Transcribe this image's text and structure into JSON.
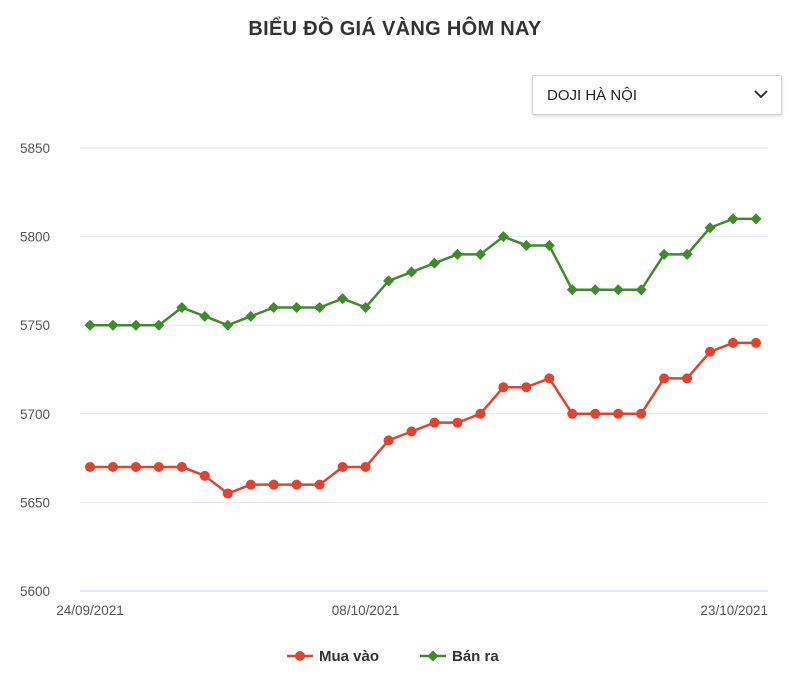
{
  "title": "BIỂU ĐỒ GIÁ VÀNG HÔM NAY",
  "selector": {
    "value": "DOJI HÀ NỘI"
  },
  "colors": {
    "buy": "#e0432f",
    "sell": "#3f8a2c",
    "grid": "#e3e6ee",
    "axis": "#c9d1ea"
  },
  "chart_data": {
    "type": "line",
    "title": "BIỂU ĐỒ GIÁ VÀNG HÔM NAY",
    "x_tick_labels": [
      "24/09/2021",
      "08/10/2021",
      "23/10/2021"
    ],
    "x_tick_indices": [
      0,
      12,
      29
    ],
    "y_ticks": [
      5600,
      5650,
      5700,
      5750,
      5800,
      5850
    ],
    "ylim": [
      5600,
      5850
    ],
    "grid": true,
    "legend_position": "bottom",
    "series": [
      {
        "name": "Mua vào",
        "marker": "circle",
        "values": [
          5670,
          5670,
          5670,
          5670,
          5670,
          5665,
          5655,
          5660,
          5660,
          5660,
          5660,
          5670,
          5670,
          5685,
          5690,
          5695,
          5695,
          5700,
          5715,
          5715,
          5720,
          5700,
          5700,
          5700,
          5700,
          5720,
          5720,
          5735,
          5740,
          5740
        ]
      },
      {
        "name": "Bán ra",
        "marker": "diamond",
        "values": [
          5750,
          5750,
          5750,
          5750,
          5760,
          5755,
          5750,
          5755,
          5760,
          5760,
          5760,
          5765,
          5760,
          5775,
          5780,
          5785,
          5790,
          5790,
          5800,
          5795,
          5795,
          5770,
          5770,
          5770,
          5770,
          5790,
          5790,
          5805,
          5810,
          5810
        ]
      }
    ]
  }
}
